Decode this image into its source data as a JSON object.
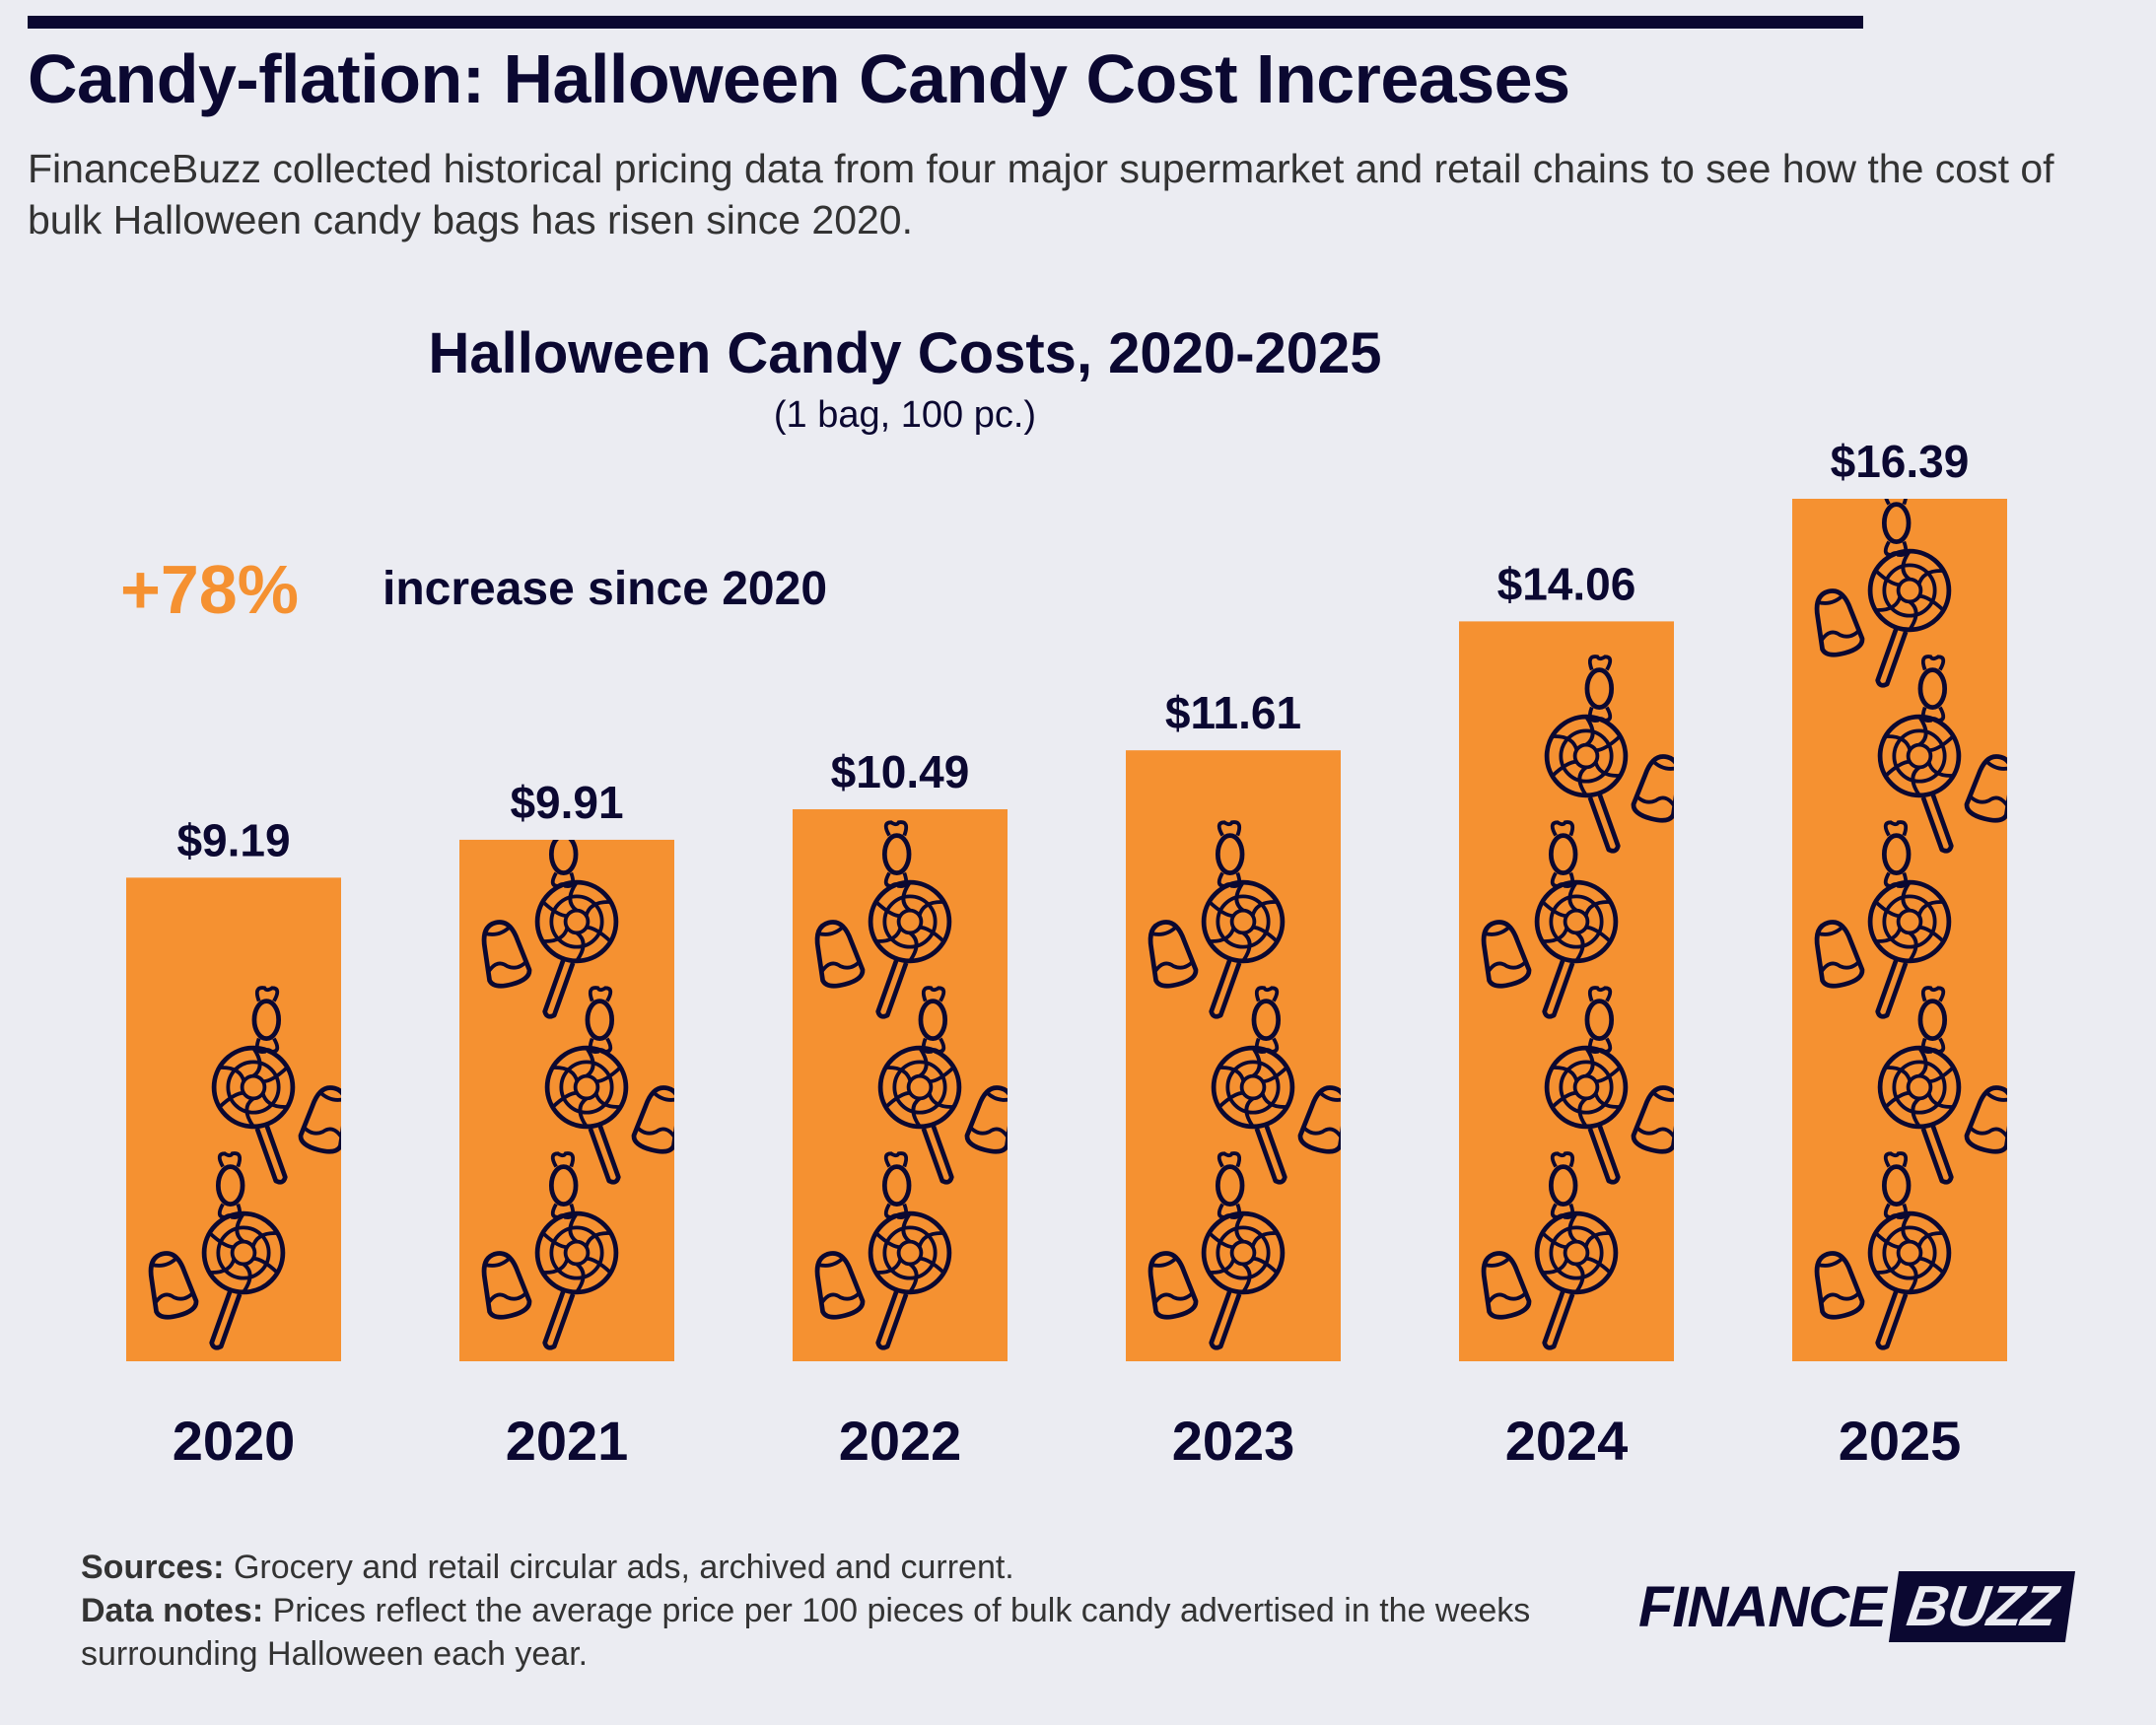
{
  "header": {
    "title": "Candy-flation: Halloween Candy Cost Increases",
    "subtitle": "FinanceBuzz collected historical pricing data from four major supermarket and retail chains to see how the cost of bulk Halloween candy bags has risen since 2020."
  },
  "callout": {
    "value": "+78%",
    "text": "increase since 2020"
  },
  "colors": {
    "bar": "#f59131",
    "text": "#0b0831",
    "background": "#ebecf2",
    "accent": "#f59131"
  },
  "chart_data": {
    "type": "bar",
    "title": "Halloween Candy Costs, 2020-2025",
    "subtitle": "(1 bag, 100 pc.)",
    "xlabel": "",
    "ylabel": "",
    "categories": [
      "2020",
      "2021",
      "2022",
      "2023",
      "2024",
      "2025"
    ],
    "values": [
      9.19,
      9.91,
      10.49,
      11.61,
      14.06,
      16.39
    ],
    "data_labels": [
      "$9.19",
      "$9.91",
      "$10.49",
      "$11.61",
      "$14.06",
      "$16.39"
    ],
    "ylim": [
      0,
      16.39
    ],
    "grid": false,
    "legend": "none",
    "bar_decoration": "candy-pattern-icons"
  },
  "footer": {
    "sources_label": "Sources:",
    "sources_text": " Grocery and retail circular ads, archived and current.",
    "notes_label": "Data notes:",
    "notes_text": " Prices reflect the average price per 100 pieces of bulk candy advertised in the weeks surrounding Halloween each year."
  },
  "logo": {
    "part1": "FINANCE",
    "part2": "BUZZ"
  }
}
